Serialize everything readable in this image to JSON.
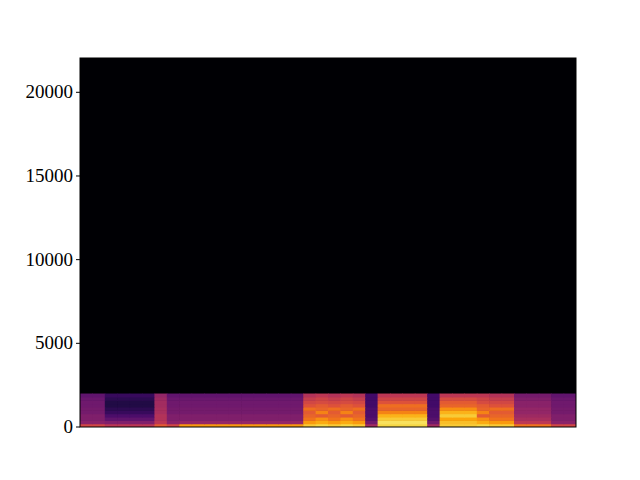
{
  "chart_data": {
    "type": "heatmap",
    "ylim": [
      0,
      22050
    ],
    "yticks": [
      0,
      5000,
      10000,
      15000,
      20000
    ],
    "tick_labels": "y",
    "color_range": [
      -80,
      0
    ],
    "frequencies": [
      0,
      200,
      400,
      600,
      800,
      1000,
      1200,
      1400,
      1600,
      1800,
      2000
    ],
    "cells": [
      [
        -35,
        -35,
        -40,
        -40,
        -40,
        -40,
        -30,
        -35,
        -18,
        -18,
        -18,
        -18,
        -18,
        -18,
        -18,
        -18,
        -18,
        -18,
        -10,
        -8,
        -10,
        -8,
        -10,
        -45,
        -8,
        -8,
        -8,
        -8,
        -45,
        -10,
        -10,
        -10,
        -8,
        -10,
        -10,
        -25,
        -25,
        -25,
        -35,
        -35
      ],
      [
        -50,
        -50,
        -52,
        -52,
        -52,
        -52,
        -40,
        -50,
        -48,
        -48,
        -48,
        -48,
        -48,
        -48,
        -48,
        -48,
        -48,
        -48,
        -18,
        -15,
        -18,
        -15,
        -18,
        -55,
        -6,
        -6,
        -6,
        -6,
        -55,
        -12,
        -12,
        -12,
        -15,
        -18,
        -18,
        -40,
        -40,
        -40,
        -50,
        -50
      ],
      [
        -52,
        -52,
        -58,
        -58,
        -58,
        -58,
        -42,
        -52,
        -52,
        -52,
        -52,
        -52,
        -52,
        -52,
        -52,
        -52,
        -52,
        -52,
        -25,
        -20,
        -25,
        -20,
        -25,
        -60,
        -10,
        -10,
        -10,
        -10,
        -60,
        -16,
        -16,
        -16,
        -20,
        -25,
        -25,
        -44,
        -44,
        -44,
        -52,
        -52
      ],
      [
        -52,
        -52,
        -62,
        -62,
        -62,
        -62,
        -42,
        -52,
        -52,
        -52,
        -52,
        -52,
        -52,
        -52,
        -52,
        -52,
        -52,
        -52,
        -28,
        -30,
        -28,
        -30,
        -28,
        -62,
        -14,
        -14,
        -14,
        -14,
        -62,
        -10,
        -10,
        -10,
        -30,
        -28,
        -28,
        -46,
        -46,
        -46,
        -52,
        -52
      ],
      [
        -54,
        -54,
        -66,
        -66,
        -66,
        -66,
        -44,
        -54,
        -54,
        -54,
        -54,
        -54,
        -54,
        -54,
        -54,
        -54,
        -54,
        -54,
        -30,
        -22,
        -30,
        -22,
        -30,
        -62,
        -22,
        -22,
        -22,
        -22,
        -62,
        -14,
        -14,
        -14,
        -22,
        -30,
        -30,
        -48,
        -48,
        -48,
        -54,
        -54
      ],
      [
        -54,
        -54,
        -68,
        -68,
        -68,
        -68,
        -44,
        -54,
        -54,
        -54,
        -54,
        -54,
        -54,
        -54,
        -54,
        -54,
        -54,
        -54,
        -26,
        -28,
        -26,
        -28,
        -26,
        -62,
        -28,
        -28,
        -28,
        -28,
        -62,
        -20,
        -20,
        -20,
        -28,
        -26,
        -26,
        -48,
        -48,
        -48,
        -54,
        -54
      ],
      [
        -55,
        -55,
        -70,
        -70,
        -70,
        -70,
        -45,
        -55,
        -55,
        -55,
        -55,
        -55,
        -55,
        -55,
        -55,
        -55,
        -55,
        -55,
        -32,
        -30,
        -32,
        -30,
        -32,
        -64,
        -26,
        -26,
        -26,
        -26,
        -64,
        -28,
        -28,
        -28,
        -30,
        -32,
        -32,
        -50,
        -50,
        -50,
        -55,
        -55
      ],
      [
        -55,
        -55,
        -70,
        -70,
        -70,
        -70,
        -45,
        -55,
        -55,
        -55,
        -55,
        -55,
        -55,
        -55,
        -55,
        -55,
        -55,
        -55,
        -35,
        -34,
        -35,
        -34,
        -35,
        -64,
        -32,
        -32,
        -32,
        -32,
        -64,
        -30,
        -30,
        -30,
        -34,
        -35,
        -35,
        -50,
        -50,
        -50,
        -55,
        -55
      ],
      [
        -56,
        -56,
        -68,
        -68,
        -68,
        -68,
        -46,
        -56,
        -56,
        -56,
        -56,
        -56,
        -56,
        -56,
        -56,
        -56,
        -56,
        -56,
        -38,
        -36,
        -38,
        -36,
        -38,
        -64,
        -36,
        -36,
        -36,
        -36,
        -64,
        -34,
        -34,
        -34,
        -36,
        -38,
        -38,
        -52,
        -52,
        -52,
        -56,
        -56
      ],
      [
        -58,
        -58,
        -66,
        -66,
        -66,
        -66,
        -48,
        -58,
        -58,
        -58,
        -58,
        -58,
        -58,
        -58,
        -58,
        -58,
        -58,
        -58,
        -42,
        -40,
        -42,
        -40,
        -42,
        -64,
        -40,
        -40,
        -40,
        -40,
        -64,
        -40,
        -40,
        -40,
        -40,
        -42,
        -42,
        -54,
        -54,
        -54,
        -58,
        -58
      ]
    ]
  }
}
